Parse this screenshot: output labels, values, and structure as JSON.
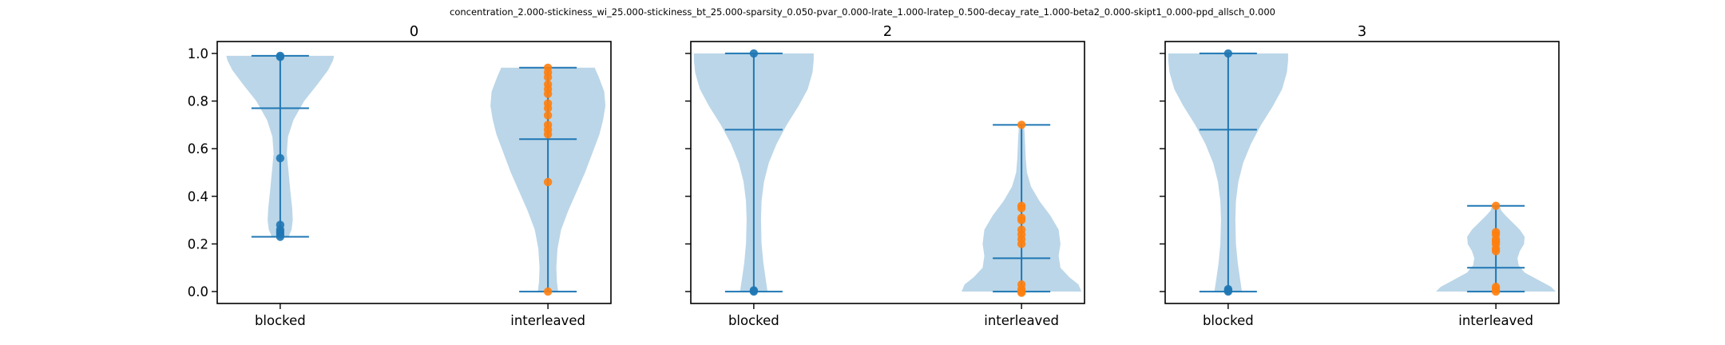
{
  "suptitle": "concentration_2.000-stickiness_wi_25.000-stickiness_bt_25.000-sparsity_0.050-pvar_0.000-lrate_1.000-lratep_0.500-decay_rate_1.000-beta2_0.000-skipt1_0.000-ppd_allsch_0.000",
  "colors": {
    "violin_fill": "#1f77b4",
    "blocked_points": "#1f77b4",
    "interleaved_points": "#ff7f0e",
    "stats_lines": "#1f77b4"
  },
  "chart_data": [
    {
      "type": "violin",
      "title": "0",
      "categories": [
        "blocked",
        "interleaved"
      ],
      "ylim": [
        -0.05,
        1.05
      ],
      "yticks": [
        "0.0",
        "0.2",
        "0.4",
        "0.6",
        "0.8",
        "1.0"
      ],
      "series": [
        {
          "category": "blocked",
          "min": 0.23,
          "max": 0.99,
          "mean": 0.77,
          "points": [
            0.99,
            0.985,
            0.56,
            0.28,
            0.26,
            0.25,
            0.24,
            0.23
          ],
          "density": [
            [
              0.23,
              0.14
            ],
            [
              0.26,
              0.19
            ],
            [
              0.3,
              0.21
            ],
            [
              0.35,
              0.2
            ],
            [
              0.42,
              0.17
            ],
            [
              0.5,
              0.14
            ],
            [
              0.58,
              0.11
            ],
            [
              0.65,
              0.13
            ],
            [
              0.72,
              0.22
            ],
            [
              0.8,
              0.4
            ],
            [
              0.87,
              0.62
            ],
            [
              0.93,
              0.8
            ],
            [
              0.97,
              0.88
            ],
            [
              0.99,
              0.9
            ]
          ]
        },
        {
          "category": "interleaved",
          "min": 0.0,
          "max": 0.94,
          "mean": 0.64,
          "points": [
            0.94,
            0.92,
            0.9,
            0.87,
            0.85,
            0.83,
            0.79,
            0.77,
            0.74,
            0.7,
            0.68,
            0.66,
            0.46,
            0.0
          ],
          "density": [
            [
              0.0,
              0.17
            ],
            [
              0.04,
              0.15
            ],
            [
              0.1,
              0.14
            ],
            [
              0.18,
              0.16
            ],
            [
              0.26,
              0.22
            ],
            [
              0.34,
              0.34
            ],
            [
              0.42,
              0.48
            ],
            [
              0.5,
              0.62
            ],
            [
              0.58,
              0.74
            ],
            [
              0.66,
              0.86
            ],
            [
              0.72,
              0.92
            ],
            [
              0.78,
              0.96
            ],
            [
              0.84,
              0.94
            ],
            [
              0.9,
              0.85
            ],
            [
              0.94,
              0.78
            ]
          ]
        }
      ]
    },
    {
      "type": "violin",
      "title": "2",
      "categories": [
        "blocked",
        "interleaved"
      ],
      "ylim": [
        -0.05,
        1.05
      ],
      "yticks": [
        "0.0",
        "0.2",
        "0.4",
        "0.6",
        "0.8",
        "1.0"
      ],
      "series": [
        {
          "category": "blocked",
          "min": 0.0,
          "max": 1.0,
          "mean": 0.68,
          "points": [
            1.0,
            0.0,
            0.005
          ],
          "density": [
            [
              0.0,
              0.23
            ],
            [
              0.05,
              0.2
            ],
            [
              0.12,
              0.16
            ],
            [
              0.2,
              0.13
            ],
            [
              0.3,
              0.12
            ],
            [
              0.38,
              0.13
            ],
            [
              0.46,
              0.17
            ],
            [
              0.54,
              0.25
            ],
            [
              0.62,
              0.38
            ],
            [
              0.7,
              0.55
            ],
            [
              0.78,
              0.75
            ],
            [
              0.85,
              0.9
            ],
            [
              0.92,
              0.98
            ],
            [
              0.97,
              1.0
            ],
            [
              1.0,
              1.0
            ]
          ]
        },
        {
          "category": "interleaved",
          "min": 0.0,
          "max": 0.7,
          "mean": 0.14,
          "points": [
            0.7,
            0.36,
            0.35,
            0.31,
            0.3,
            0.26,
            0.24,
            0.22,
            0.2,
            0.03,
            0.01,
            0.0,
            -0.005
          ],
          "density": [
            [
              0.0,
              1.0
            ],
            [
              0.03,
              0.95
            ],
            [
              0.06,
              0.8
            ],
            [
              0.1,
              0.65
            ],
            [
              0.15,
              0.62
            ],
            [
              0.2,
              0.65
            ],
            [
              0.26,
              0.62
            ],
            [
              0.32,
              0.48
            ],
            [
              0.38,
              0.3
            ],
            [
              0.44,
              0.16
            ],
            [
              0.5,
              0.09
            ],
            [
              0.56,
              0.07
            ],
            [
              0.62,
              0.06
            ],
            [
              0.67,
              0.05
            ],
            [
              0.7,
              0.04
            ]
          ]
        }
      ]
    },
    {
      "type": "violin",
      "title": "3",
      "categories": [
        "blocked",
        "interleaved"
      ],
      "ylim": [
        -0.05,
        1.05
      ],
      "yticks": [
        "0.0",
        "0.2",
        "0.4",
        "0.6",
        "0.8",
        "1.0"
      ],
      "series": [
        {
          "category": "blocked",
          "min": 0.0,
          "max": 1.0,
          "mean": 0.68,
          "points": [
            1.0,
            0.0,
            0.005,
            0.01
          ],
          "density": [
            [
              0.0,
              0.23
            ],
            [
              0.05,
              0.2
            ],
            [
              0.12,
              0.16
            ],
            [
              0.2,
              0.13
            ],
            [
              0.3,
              0.12
            ],
            [
              0.38,
              0.13
            ],
            [
              0.46,
              0.17
            ],
            [
              0.54,
              0.25
            ],
            [
              0.62,
              0.38
            ],
            [
              0.7,
              0.55
            ],
            [
              0.78,
              0.75
            ],
            [
              0.85,
              0.9
            ],
            [
              0.92,
              0.98
            ],
            [
              0.97,
              1.0
            ],
            [
              1.0,
              1.0
            ]
          ]
        },
        {
          "category": "interleaved",
          "min": 0.0,
          "max": 0.36,
          "mean": 0.1,
          "points": [
            0.36,
            0.25,
            0.24,
            0.22,
            0.21,
            0.2,
            0.18,
            0.17,
            0.02,
            0.01,
            0.0
          ],
          "density": [
            [
              0.0,
              1.0
            ],
            [
              0.02,
              0.92
            ],
            [
              0.05,
              0.7
            ],
            [
              0.08,
              0.48
            ],
            [
              0.11,
              0.38
            ],
            [
              0.14,
              0.36
            ],
            [
              0.17,
              0.4
            ],
            [
              0.2,
              0.47
            ],
            [
              0.23,
              0.48
            ],
            [
              0.26,
              0.4
            ],
            [
              0.29,
              0.28
            ],
            [
              0.32,
              0.16
            ],
            [
              0.34,
              0.09
            ],
            [
              0.36,
              0.06
            ]
          ]
        }
      ]
    }
  ]
}
